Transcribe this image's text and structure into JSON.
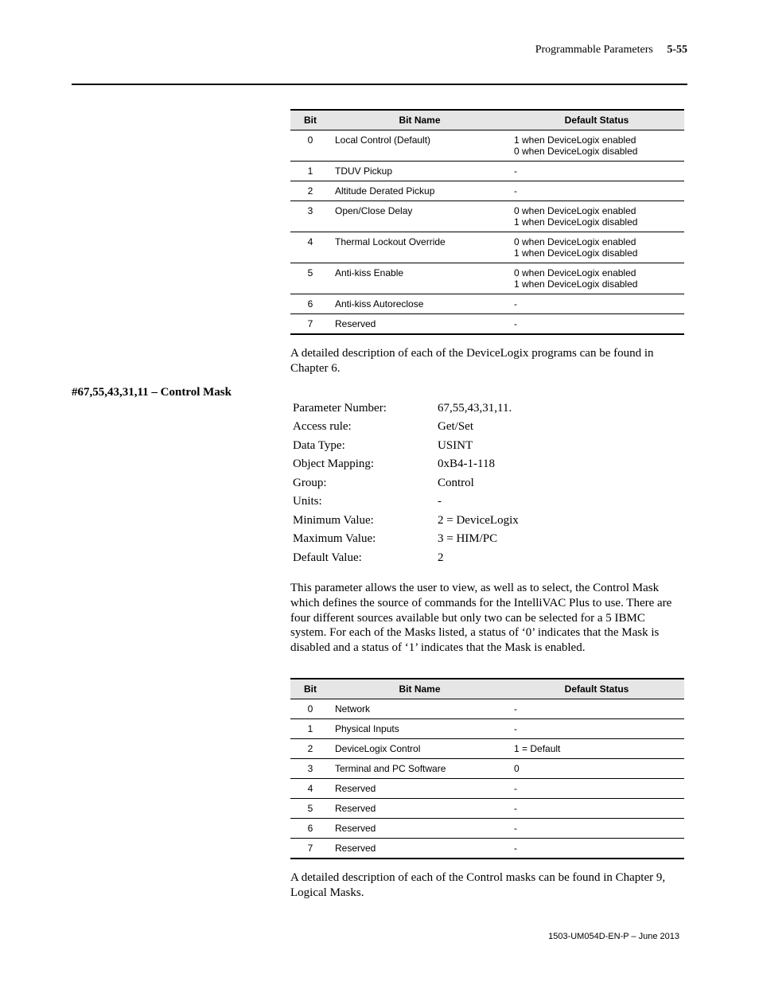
{
  "header": {
    "right": "Programmable Parameters",
    "page_num": "5-55"
  },
  "table1": {
    "headers": [
      "Bit",
      "Bit Name",
      "Default Status"
    ],
    "rows": [
      [
        "0",
        "Local Control (Default)",
        "1 when DeviceLogix enabled\n0 when DeviceLogix disabled"
      ],
      [
        "1",
        "TDUV Pickup",
        "-"
      ],
      [
        "2",
        "Altitude Derated Pickup",
        "-"
      ],
      [
        "3",
        "Open/Close Delay",
        "0 when DeviceLogix enabled\n1 when DeviceLogix disabled"
      ],
      [
        "4",
        "Thermal Lockout Override",
        "0 when DeviceLogix enabled\n1 when DeviceLogix disabled"
      ],
      [
        "5",
        "Anti-kiss Enable",
        "0 when DeviceLogix enabled\n1 when DeviceLogix disabled"
      ],
      [
        "6",
        "Anti-kiss Autoreclose",
        "-"
      ],
      [
        "7",
        "Reserved",
        "-"
      ]
    ],
    "footer_text": "A detailed description of each of the DeviceLogix programs can be found in Chapter 6."
  },
  "section2": {
    "left_label": "#67,55,43,31,11 – Control Mask",
    "kv": [
      [
        "Parameter Number:",
        "67,55,43,31,11."
      ],
      [
        "Access rule:",
        "Get/Set"
      ],
      [
        "Data Type:",
        "USINT"
      ],
      [
        "Object Mapping:",
        "0xB4-1-118"
      ],
      [
        "Group:",
        "Control"
      ],
      [
        "Units:",
        "-"
      ],
      [
        "Minimum Value:",
        "2 = DeviceLogix"
      ],
      [
        "Maximum Value:",
        "3 = HIM/PC"
      ],
      [
        "Default Value:",
        "2"
      ]
    ],
    "body": "This parameter allows the user to view, as well as to select, the Control Mask which defines the source of commands for the IntelliVAC Plus to use.  There are four different sources available but only two can be selected for a 5 IBMC system.  For each of the Masks listed, a status of ‘0’ indicates that the Mask is disabled and a status of ‘1’ indicates that the Mask is enabled."
  },
  "table2": {
    "headers": [
      "Bit",
      "Bit Name",
      "Default Status"
    ],
    "rows": [
      [
        "0",
        "Network",
        "-"
      ],
      [
        "1",
        "Physical Inputs",
        "-"
      ],
      [
        "2",
        "DeviceLogix Control",
        "1 = Default"
      ],
      [
        "3",
        "Terminal and PC Software",
        "0"
      ],
      [
        "4",
        "Reserved",
        "-"
      ],
      [
        "5",
        "Reserved",
        "-"
      ],
      [
        "6",
        "Reserved",
        "-"
      ],
      [
        "7",
        "Reserved",
        "-"
      ]
    ],
    "footer_text": "A detailed description of each of the Control masks can be found in Chapter 9, Logical Masks."
  },
  "footer": "1503-UM054D-EN-P – June 2013"
}
